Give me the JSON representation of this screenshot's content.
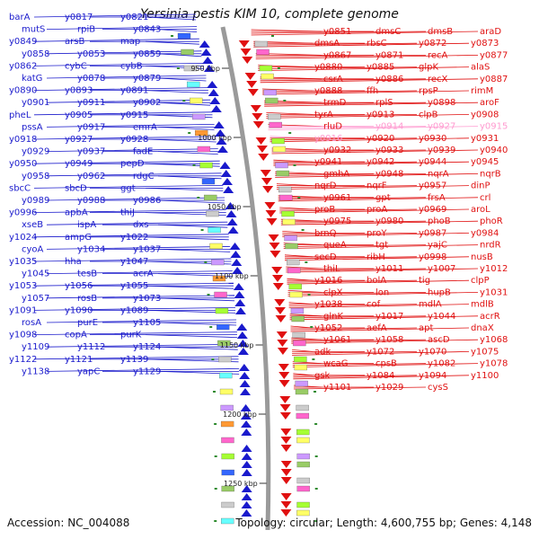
{
  "header": {
    "title": "Yersinia pestis KIM 10, complete genome"
  },
  "footer": {
    "accession": "Accession: NC_004088",
    "summary": "Topology: circular; Length: 4,600,755 bp; Genes: 4,148"
  },
  "ticks": [
    "950 kbp",
    "1000 kbp",
    "1050 kbp",
    "1100 kbp",
    "1150 kbp",
    "1200 kbp",
    "1250 kbp"
  ],
  "colors": {
    "minus_strand": "#1a1acc",
    "plus_strand": "#e01010",
    "rna": "#ff9ad0",
    "backbone": "#9a9a9a",
    "tick": "#2e8b2e"
  },
  "left_labels": [
    "barA",
    "y0817",
    "y0821",
    "mutS",
    "rpiB",
    "y0843",
    "y0849",
    "arsB",
    "map",
    "y0858",
    "y0853",
    "y0859",
    "y0862",
    "cybC",
    "cybB",
    "katG",
    "y0878",
    "y0879",
    "y0890",
    "y0893",
    "y0891",
    "y0901",
    "y0911",
    "y0902",
    "pheL",
    "y0905",
    "y0915",
    "pssA",
    "y0917",
    "emrA",
    "y0918",
    "y0927",
    "y0928",
    "y0929",
    "y0937",
    "fadE",
    "y0950",
    "y0949",
    "pepD",
    "y0958",
    "y0962",
    "rdgC",
    "sbcC",
    "sbcD",
    "ggt",
    "y0989",
    "y0988",
    "y0986",
    "y0996",
    "apbA",
    "thiJ",
    "xseB",
    "ispA",
    "dxs",
    "y1024",
    "ampG",
    "y1022",
    "cyoA",
    "y1034",
    "y1037",
    "y1035",
    "hha",
    "y1047",
    "y1045",
    "tesB",
    "acrA",
    "y1053",
    "y1056",
    "y1055",
    "y1057",
    "rosB",
    "y1073",
    "y1091",
    "y1090",
    "y1089",
    "rosA",
    "purE",
    "y1105",
    "y1098",
    "copA",
    "purK",
    "y1109",
    "y1112",
    "y1124",
    "y1122",
    "y1121",
    "y1139",
    "y1138",
    "yapC",
    "y1129"
  ],
  "right_labels": [
    "y0851",
    "dmsC",
    "dmsB",
    "araD",
    "dmsA",
    "rbsC",
    "y0872",
    "y0873",
    "y0867",
    "y0871",
    "recA",
    "y0877",
    "y0880",
    "y0885",
    "glpK",
    "alaS",
    "csrA",
    "y0886",
    "recX",
    "y0887",
    "y0888",
    "ffh",
    "rpsP",
    "rimM",
    "trmD",
    "rplS",
    "y0898",
    "aroF",
    "tyrA",
    "y0913",
    "clpB",
    "y0908",
    "rluD",
    "y0914",
    "y0927",
    "y0915",
    "y0916",
    "y0920",
    "y0930",
    "y0931",
    "y0932",
    "y0933",
    "y0939",
    "y0940",
    "y0941",
    "y0942",
    "y0944",
    "y0945",
    "gmhA",
    "y0948",
    "nqrA",
    "nqrB",
    "nqrD",
    "nqrF",
    "y0957",
    "dinP",
    "y0961",
    "gpt",
    "frsA",
    "crl",
    "proB",
    "proA",
    "y0969",
    "aroL",
    "y0975",
    "y0980",
    "phoB",
    "phoR",
    "brnQ",
    "proY",
    "y0987",
    "y0984",
    "queA",
    "tgt",
    "yajC",
    "nrdR",
    "secD",
    "ribH",
    "y0998",
    "nusB",
    "thiL",
    "y1011",
    "y1007",
    "y1012",
    "y1016",
    "bolA",
    "tig",
    "clpP",
    "clpX",
    "lon",
    "hupB",
    "y1031",
    "y1038",
    "cof",
    "mdlA",
    "mdlB",
    "glnK",
    "y1017",
    "y1044",
    "acrR",
    "y1052",
    "aefA",
    "apt",
    "dnaX",
    "y1061",
    "y1058",
    "ascD",
    "y1068",
    "adk",
    "y1072",
    "y1070",
    "y1075",
    "wcaG",
    "cpsB",
    "y1082",
    "y1078",
    "gsk",
    "y1084",
    "y1094",
    "y1100",
    "y1101",
    "y1029",
    "cysS"
  ],
  "rna_labels": [
    "y0914",
    "y0927",
    "y0915",
    "y0916",
    "y1017",
    "y1029",
    "cysS"
  ]
}
